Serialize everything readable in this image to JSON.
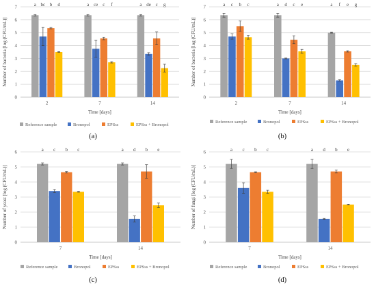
{
  "legend": {
    "items": [
      {
        "label": "Reference sample",
        "color": "#A5A5A5"
      },
      {
        "label": "Bronopol",
        "color": "#4472C4"
      },
      {
        "label": "EPSss",
        "color": "#ED7D31"
      },
      {
        "label": "EPSss + Bronopol",
        "color": "#FFC000"
      }
    ]
  },
  "chart_data": [
    {
      "type": "bar",
      "panel_label": "(a)",
      "categories": [
        "2",
        "7",
        "14"
      ],
      "ylim": [
        0,
        7
      ],
      "yticks": [
        0,
        1,
        2,
        3,
        4,
        5,
        6,
        7
      ],
      "xlabel": "Time [days]",
      "ylabel": "Number of bacteria [log (CFU/mL)]",
      "grid": true,
      "legend_placement": "bottom",
      "series": [
        {
          "name": "Reference sample",
          "color": "#A5A5A5",
          "values": [
            6.35,
            6.35,
            6.35
          ],
          "errors": [
            0.05,
            0.05,
            0.05
          ]
        },
        {
          "name": "Bronopol",
          "color": "#4472C4",
          "values": [
            4.7,
            3.75,
            3.35
          ],
          "errors": [
            0.7,
            0.65,
            0.1
          ]
        },
        {
          "name": "EPSss",
          "color": "#ED7D31",
          "values": [
            5.35,
            4.55,
            4.55
          ],
          "errors": [
            0.05,
            0.1,
            0.5
          ]
        },
        {
          "name": "EPSss + Bronopol",
          "color": "#FFC000",
          "values": [
            3.5,
            2.7,
            2.25
          ],
          "errors": [
            0.03,
            0.05,
            0.3
          ]
        }
      ],
      "letters": [
        [
          "a",
          "bc",
          "b",
          "d"
        ],
        [
          "a",
          "ce",
          "c",
          "f"
        ],
        [
          "a",
          "de",
          "c",
          "g"
        ]
      ]
    },
    {
      "type": "bar",
      "panel_label": "(b)",
      "categories": [
        "2",
        "7",
        "14"
      ],
      "ylim": [
        0,
        7
      ],
      "yticks": [
        0,
        1,
        2,
        3,
        4,
        5,
        6,
        7
      ],
      "xlabel": "Time [days]",
      "ylabel": "Number of bacteria [log (CFU/mL)]",
      "grid": true,
      "legend_placement": "bottom",
      "series": [
        {
          "name": "Reference sample",
          "color": "#A5A5A5",
          "values": [
            6.35,
            6.35,
            5.0
          ],
          "errors": [
            0.15,
            0.15,
            0.03
          ]
        },
        {
          "name": "Bronopol",
          "color": "#4472C4",
          "values": [
            4.7,
            3.0,
            1.3
          ],
          "errors": [
            0.2,
            0.03,
            0.05
          ]
        },
        {
          "name": "EPSss",
          "color": "#ED7D31",
          "values": [
            5.5,
            4.45,
            3.55
          ],
          "errors": [
            0.4,
            0.3,
            0.05
          ]
        },
        {
          "name": "EPSss + Bronopol",
          "color": "#FFC000",
          "values": [
            4.65,
            3.55,
            2.5
          ],
          "errors": [
            0.15,
            0.15,
            0.1
          ]
        }
      ],
      "letters": [
        [
          "a",
          "c",
          "b",
          "c"
        ],
        [
          "a",
          "d",
          "c",
          "e"
        ],
        [
          "a",
          "f",
          "e",
          "g"
        ]
      ]
    },
    {
      "type": "bar",
      "panel_label": "(c)",
      "categories": [
        "7",
        "14"
      ],
      "ylim": [
        0,
        6
      ],
      "yticks": [
        0,
        1,
        2,
        3,
        4,
        5,
        6
      ],
      "xlabel": "Time [days]",
      "ylabel": "Number of yeast [log (CFU/mL)]",
      "grid": true,
      "legend_placement": "bottom",
      "series": [
        {
          "name": "Reference sample",
          "color": "#A5A5A5",
          "values": [
            5.2,
            5.2
          ],
          "errors": [
            0.07,
            0.07
          ]
        },
        {
          "name": "Bronopol",
          "color": "#4472C4",
          "values": [
            3.4,
            1.55
          ],
          "errors": [
            0.1,
            0.2
          ]
        },
        {
          "name": "EPSss",
          "color": "#ED7D31",
          "values": [
            4.65,
            4.7
          ],
          "errors": [
            0.05,
            0.45
          ]
        },
        {
          "name": "EPSss + Bronopol",
          "color": "#FFC000",
          "values": [
            3.35,
            2.45
          ],
          "errors": [
            0.03,
            0.15
          ]
        }
      ],
      "letters": [
        [
          "a",
          "c",
          "b",
          "c"
        ],
        [
          "a",
          "d",
          "b",
          "e"
        ]
      ]
    },
    {
      "type": "bar",
      "panel_label": "(d)",
      "categories": [
        "7",
        "14"
      ],
      "ylim": [
        0,
        6
      ],
      "yticks": [
        0,
        1,
        2,
        3,
        4,
        5,
        6
      ],
      "xlabel": "Time [days]",
      "ylabel": "Number of fungi [log (CFU/mL)]",
      "grid": true,
      "legend_placement": "bottom",
      "series": [
        {
          "name": "Reference sample",
          "color": "#A5A5A5",
          "values": [
            5.2,
            5.2
          ],
          "errors": [
            0.3,
            0.3
          ]
        },
        {
          "name": "Bronopol",
          "color": "#4472C4",
          "values": [
            3.6,
            1.55
          ],
          "errors": [
            0.35,
            0.03
          ]
        },
        {
          "name": "EPSss",
          "color": "#ED7D31",
          "values": [
            4.65,
            4.7
          ],
          "errors": [
            0.03,
            0.1
          ]
        },
        {
          "name": "EPSss + Bronopol",
          "color": "#FFC000",
          "values": [
            3.35,
            2.5
          ],
          "errors": [
            0.1,
            0.03
          ]
        }
      ],
      "letters": [
        [
          "a",
          "c",
          "b",
          "c"
        ],
        [
          "a",
          "d",
          "b",
          "e"
        ]
      ]
    }
  ]
}
